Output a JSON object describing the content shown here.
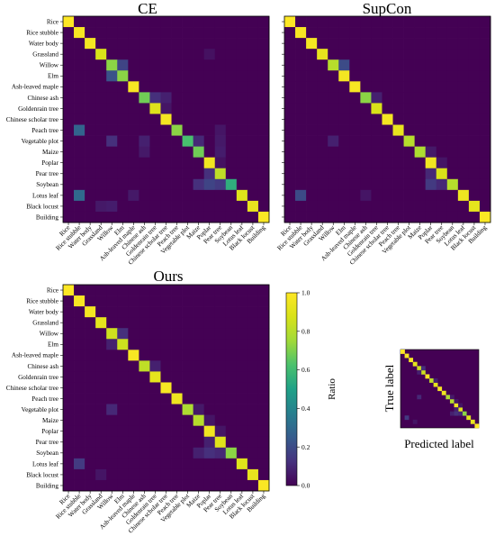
{
  "labels": [
    "Rice",
    "Rice stubble",
    "Water body",
    "Grassland",
    "Willow",
    "Elm",
    "Ash-leaved maple",
    "Chinese ash",
    "Goldenrain tree",
    "Chinese scholar tree",
    "Peach tree",
    "Vegetable plot",
    "Maize",
    "Poplar",
    "Pear tree",
    "Soybean",
    "Lotus leaf",
    "Black locust",
    "Building"
  ],
  "panels": [
    {
      "id": "ce",
      "title": "CE"
    },
    {
      "id": "supcon",
      "title": "SupCon"
    },
    {
      "id": "ours",
      "title": "Ours"
    }
  ],
  "colorbar": {
    "label": "Ratio",
    "ticks": [
      "0.0",
      "0.2",
      "0.4",
      "0.6",
      "0.8",
      "1.0"
    ]
  },
  "legend": {
    "ylabel": "True label",
    "xlabel": "Predicted label"
  },
  "chart_data": [
    {
      "type": "heatmap",
      "title": "CE",
      "xlabel": "",
      "ylabel": "",
      "zlim": [
        0,
        1
      ],
      "colormap": "viridis",
      "diagonal": [
        1.0,
        0.98,
        0.97,
        0.88,
        0.72,
        0.72,
        0.98,
        0.68,
        0.9,
        0.97,
        0.72,
        0.62,
        0.68,
        0.96,
        0.82,
        0.55,
        0.9,
        0.93,
        0.99
      ],
      "offdiag": [
        {
          "row": 3,
          "col": 13,
          "value": 0.04
        },
        {
          "row": 4,
          "col": 5,
          "value": 0.18
        },
        {
          "row": 5,
          "col": 4,
          "value": 0.22
        },
        {
          "row": 7,
          "col": 8,
          "value": 0.12
        },
        {
          "row": 7,
          "col": 9,
          "value": 0.08
        },
        {
          "row": 8,
          "col": 9,
          "value": 0.05
        },
        {
          "row": 10,
          "col": 1,
          "value": 0.28
        },
        {
          "row": 10,
          "col": 14,
          "value": 0.05
        },
        {
          "row": 11,
          "col": 4,
          "value": 0.12
        },
        {
          "row": 11,
          "col": 7,
          "value": 0.08
        },
        {
          "row": 11,
          "col": 12,
          "value": 0.1
        },
        {
          "row": 11,
          "col": 14,
          "value": 0.06
        },
        {
          "row": 12,
          "col": 7,
          "value": 0.06
        },
        {
          "row": 12,
          "col": 14,
          "value": 0.07
        },
        {
          "row": 13,
          "col": 14,
          "value": 0.04
        },
        {
          "row": 14,
          "col": 13,
          "value": 0.12
        },
        {
          "row": 15,
          "col": 12,
          "value": 0.12
        },
        {
          "row": 15,
          "col": 13,
          "value": 0.18
        },
        {
          "row": 15,
          "col": 14,
          "value": 0.15
        },
        {
          "row": 16,
          "col": 1,
          "value": 0.3
        },
        {
          "row": 16,
          "col": 6,
          "value": 0.06
        },
        {
          "row": 17,
          "col": 3,
          "value": 0.06
        },
        {
          "row": 17,
          "col": 4,
          "value": 0.07
        }
      ]
    },
    {
      "type": "heatmap",
      "title": "SupCon",
      "xlabel": "",
      "ylabel": "",
      "zlim": [
        0,
        1
      ],
      "colormap": "viridis",
      "diagonal": [
        1.0,
        0.98,
        0.97,
        0.93,
        0.8,
        0.97,
        0.98,
        0.72,
        0.88,
        0.97,
        0.93,
        0.8,
        0.78,
        0.96,
        0.88,
        0.8,
        0.95,
        0.92,
        0.99
      ],
      "offdiag": [
        {
          "row": 4,
          "col": 5,
          "value": 0.2
        },
        {
          "row": 7,
          "col": 8,
          "value": 0.08
        },
        {
          "row": 11,
          "col": 4,
          "value": 0.08
        },
        {
          "row": 12,
          "col": 13,
          "value": 0.06
        },
        {
          "row": 13,
          "col": 14,
          "value": 0.05
        },
        {
          "row": 14,
          "col": 13,
          "value": 0.1
        },
        {
          "row": 15,
          "col": 13,
          "value": 0.15
        },
        {
          "row": 15,
          "col": 14,
          "value": 0.1
        },
        {
          "row": 16,
          "col": 1,
          "value": 0.2
        },
        {
          "row": 16,
          "col": 7,
          "value": 0.05
        }
      ]
    },
    {
      "type": "heatmap",
      "title": "Ours",
      "xlabel": "",
      "ylabel": "",
      "zlim": [
        0,
        1
      ],
      "colormap": "viridis",
      "diagonal": [
        1.0,
        0.98,
        0.97,
        0.92,
        0.85,
        0.85,
        0.98,
        0.82,
        0.92,
        0.98,
        0.95,
        0.78,
        0.8,
        0.96,
        0.9,
        0.72,
        0.9,
        0.93,
        0.99
      ],
      "offdiag": [
        {
          "row": 4,
          "col": 5,
          "value": 0.12
        },
        {
          "row": 5,
          "col": 4,
          "value": 0.08
        },
        {
          "row": 7,
          "col": 8,
          "value": 0.08
        },
        {
          "row": 11,
          "col": 4,
          "value": 0.1
        },
        {
          "row": 11,
          "col": 12,
          "value": 0.06
        },
        {
          "row": 12,
          "col": 13,
          "value": 0.05
        },
        {
          "row": 13,
          "col": 14,
          "value": 0.05
        },
        {
          "row": 14,
          "col": 13,
          "value": 0.08
        },
        {
          "row": 15,
          "col": 12,
          "value": 0.08
        },
        {
          "row": 15,
          "col": 13,
          "value": 0.12
        },
        {
          "row": 15,
          "col": 14,
          "value": 0.1
        },
        {
          "row": 16,
          "col": 1,
          "value": 0.15
        },
        {
          "row": 17,
          "col": 3,
          "value": 0.05
        }
      ]
    }
  ]
}
